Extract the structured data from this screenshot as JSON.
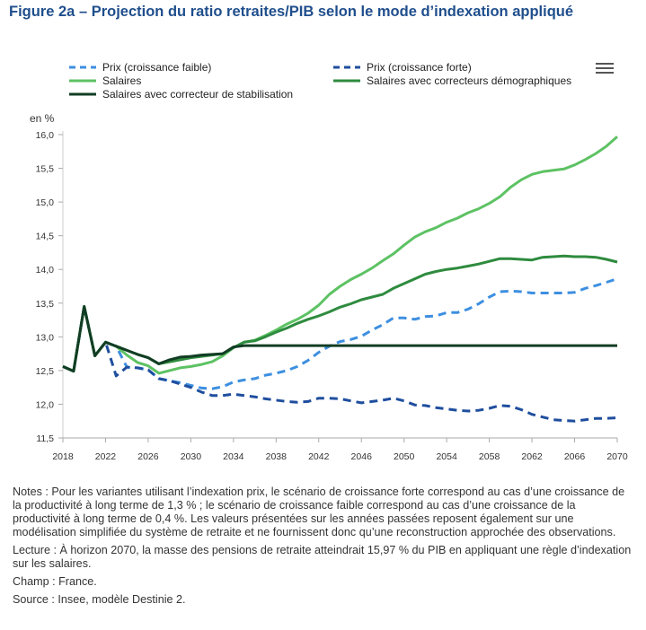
{
  "title": "Figure 2a – Projection du ratio retraites/PIB selon le mode d’indexation appliqué",
  "menu_icon": "hamburger-menu-icon",
  "notes": {
    "notes": "Notes : Pour les variantes utilisant l’indexation prix, le scénario de croissance forte correspond au cas d’une croissance de la productivité à long terme de 1,3 % ; le scénario de croissance faible correspond au cas d’une croissance de la productivité à long terme de 0,4 %. Les valeurs présentées sur les années passées reposent également sur une modélisation simplifiée du système de retraite et ne fournissent donc qu’une reconstruction approchée des observations.",
    "lecture": "Lecture : À horizon 2070, la masse des pensions de retraite atteindrait 15,97 % du PIB en appliquant une règle d’indexation sur les salaires.",
    "champ": "Champ : France.",
    "source": "Source : Insee, modèle Destinie 2."
  },
  "chart_data": {
    "type": "line",
    "title": "Projection du ratio retraites/PIB selon le mode d’indexation appliqué",
    "ylabel": "en %",
    "xlabel": "",
    "ylim": [
      11.5,
      16.0
    ],
    "xlim": [
      2018,
      2070
    ],
    "yticks": [
      11.5,
      12.0,
      12.5,
      13.0,
      13.5,
      14.0,
      14.5,
      15.0,
      15.5,
      16.0
    ],
    "ytick_labels": [
      "11,5",
      "12,0",
      "12,5",
      "13,0",
      "13,5",
      "14,0",
      "14,5",
      "15,0",
      "15,5",
      "16,0"
    ],
    "xticks": [
      2018,
      2022,
      2026,
      2030,
      2034,
      2038,
      2042,
      2046,
      2050,
      2054,
      2058,
      2062,
      2066,
      2070
    ],
    "xtick_labels": [
      "2018",
      "2022",
      "2026",
      "2030",
      "2034",
      "2038",
      "2042",
      "2046",
      "2050",
      "2054",
      "2058",
      "2062",
      "2066",
      "2070"
    ],
    "grid": false,
    "legend_position": "top",
    "x": [
      2018,
      2019,
      2020,
      2021,
      2022,
      2023,
      2024,
      2025,
      2026,
      2027,
      2028,
      2029,
      2030,
      2031,
      2032,
      2033,
      2034,
      2035,
      2036,
      2037,
      2038,
      2039,
      2040,
      2041,
      2042,
      2043,
      2044,
      2045,
      2046,
      2047,
      2048,
      2049,
      2050,
      2051,
      2052,
      2053,
      2054,
      2055,
      2056,
      2057,
      2058,
      2059,
      2060,
      2061,
      2062,
      2063,
      2064,
      2065,
      2066,
      2067,
      2068,
      2069,
      2070
    ],
    "series": [
      {
        "name": "Prix (croissance faible)",
        "color": "#3d8fe0",
        "dash": "dashed",
        "values": [
          12.56,
          12.49,
          13.45,
          12.72,
          12.92,
          12.86,
          12.55,
          12.54,
          12.51,
          12.38,
          12.35,
          12.32,
          12.28,
          12.24,
          12.23,
          12.26,
          12.33,
          12.36,
          12.38,
          12.43,
          12.46,
          12.5,
          12.56,
          12.65,
          12.77,
          12.86,
          12.93,
          12.96,
          13.01,
          13.1,
          13.18,
          13.28,
          13.28,
          13.26,
          13.3,
          13.31,
          13.36,
          13.36,
          13.41,
          13.49,
          13.59,
          13.67,
          13.68,
          13.67,
          13.65,
          13.65,
          13.65,
          13.65,
          13.66,
          13.72,
          13.76,
          13.81,
          13.86
        ]
      },
      {
        "name": "Prix (croissance forte)",
        "color": "#1f4e9e",
        "dash": "dashed",
        "values": [
          12.56,
          12.49,
          13.45,
          12.72,
          12.92,
          12.42,
          12.55,
          12.54,
          12.51,
          12.38,
          12.35,
          12.3,
          12.25,
          12.18,
          12.13,
          12.13,
          12.15,
          12.13,
          12.11,
          12.08,
          12.06,
          12.04,
          12.03,
          12.04,
          12.09,
          12.09,
          12.08,
          12.05,
          12.02,
          12.04,
          12.06,
          12.09,
          12.05,
          11.99,
          11.98,
          11.95,
          11.93,
          11.91,
          11.9,
          11.91,
          11.94,
          11.98,
          11.97,
          11.92,
          11.85,
          11.81,
          11.77,
          11.76,
          11.75,
          11.77,
          11.79,
          11.79,
          11.8
        ]
      },
      {
        "name": "Salaires",
        "color": "#5dc263",
        "dash": "solid",
        "values": [
          12.56,
          12.49,
          13.45,
          12.72,
          12.92,
          12.86,
          12.73,
          12.62,
          12.57,
          12.46,
          12.5,
          12.54,
          12.56,
          12.59,
          12.63,
          12.72,
          12.84,
          12.92,
          12.95,
          13.02,
          13.1,
          13.19,
          13.26,
          13.35,
          13.47,
          13.63,
          13.75,
          13.85,
          13.93,
          14.02,
          14.13,
          14.23,
          14.36,
          14.48,
          14.56,
          14.62,
          14.7,
          14.76,
          14.84,
          14.9,
          14.98,
          15.08,
          15.22,
          15.33,
          15.41,
          15.45,
          15.47,
          15.49,
          15.55,
          15.63,
          15.72,
          15.83,
          15.97
        ]
      },
      {
        "name": "Salaires avec correcteurs démographiques",
        "color": "#2e8b3e",
        "dash": "solid",
        "values": [
          12.56,
          12.49,
          13.45,
          12.72,
          12.92,
          12.86,
          12.8,
          12.74,
          12.69,
          12.6,
          12.63,
          12.66,
          12.69,
          12.71,
          12.73,
          12.75,
          12.84,
          12.92,
          12.94,
          13.0,
          13.07,
          13.13,
          13.2,
          13.26,
          13.31,
          13.37,
          13.44,
          13.49,
          13.55,
          13.59,
          13.63,
          13.72,
          13.79,
          13.86,
          13.93,
          13.97,
          14.0,
          14.02,
          14.05,
          14.08,
          14.12,
          14.16,
          14.16,
          14.15,
          14.14,
          14.18,
          14.19,
          14.2,
          14.19,
          14.19,
          14.18,
          14.15,
          14.11
        ]
      },
      {
        "name": "Salaires avec correcteur de stabilisation",
        "color": "#123d24",
        "dash": "solid",
        "values": [
          12.56,
          12.49,
          13.45,
          12.72,
          12.92,
          12.86,
          12.8,
          12.74,
          12.69,
          12.6,
          12.66,
          12.7,
          12.71,
          12.73,
          12.74,
          12.75,
          12.85,
          12.87,
          12.87,
          12.87,
          12.87,
          12.87,
          12.87,
          12.87,
          12.87,
          12.87,
          12.87,
          12.87,
          12.87,
          12.87,
          12.87,
          12.87,
          12.87,
          12.87,
          12.87,
          12.87,
          12.87,
          12.87,
          12.87,
          12.87,
          12.87,
          12.87,
          12.87,
          12.87,
          12.87,
          12.87,
          12.87,
          12.87,
          12.87,
          12.87,
          12.87,
          12.87,
          12.87
        ]
      }
    ]
  }
}
